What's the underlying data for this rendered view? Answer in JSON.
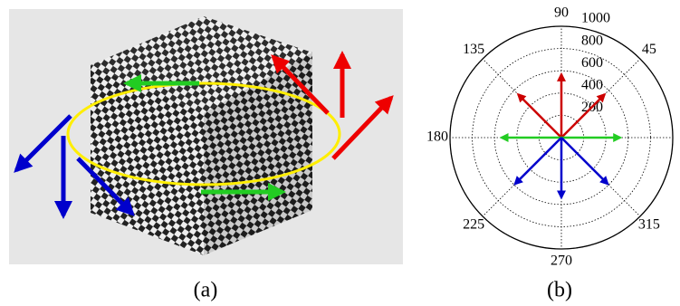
{
  "panels": [
    {
      "caption": "(a)"
    },
    {
      "caption": "(b)"
    }
  ],
  "chart_data": {
    "type": "polar",
    "rlim": [
      0,
      1000
    ],
    "rticks": [
      200,
      400,
      600,
      800,
      1000
    ],
    "angle_ticks": [
      45,
      90,
      135,
      180,
      225,
      270,
      315
    ],
    "grid": true,
    "vectors": [
      {
        "angle": 45,
        "length": 550,
        "color": "#cc0000"
      },
      {
        "angle": 90,
        "length": 570,
        "color": "#cc0000"
      },
      {
        "angle": 135,
        "length": 550,
        "color": "#cc0000"
      },
      {
        "angle": 0,
        "length": 530,
        "color": "#22cc22"
      },
      {
        "angle": 180,
        "length": 540,
        "color": "#22cc22"
      },
      {
        "angle": 225,
        "length": 590,
        "color": "#0000cc"
      },
      {
        "angle": 270,
        "length": 540,
        "color": "#0000cc"
      },
      {
        "angle": 315,
        "length": 590,
        "color": "#0000cc"
      }
    ]
  }
}
